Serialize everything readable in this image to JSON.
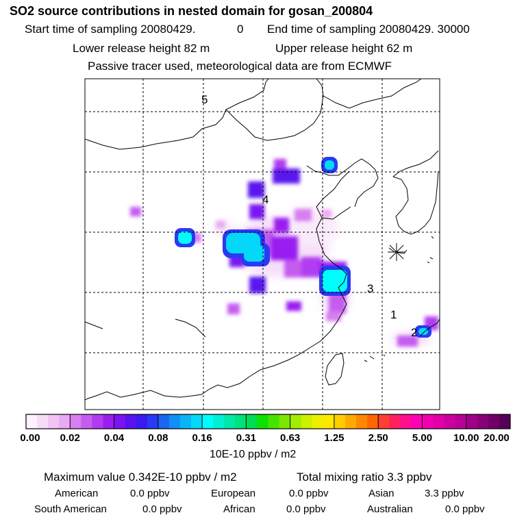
{
  "title": "SO2 source contributions in nested domain for gosan_200804",
  "header": {
    "start_label": "Start time of sampling 20080429.",
    "start_hour": "0",
    "end_label": "End time of sampling 20080429. 30000",
    "lower_release": "Lower release height   82 m",
    "upper_release": "Upper release height   62 m",
    "tracer_note": "Passive tracer used, meteorological data are from ECMWF"
  },
  "map": {
    "region_labels": [
      "5",
      "4",
      "3",
      "1",
      "2"
    ],
    "receptor_marker": "receptor-star"
  },
  "colorbar": {
    "tick_labels": [
      "0.00",
      "0.02",
      "0.04",
      "0.08",
      "0.16",
      "0.31",
      "0.63",
      "1.25",
      "2.50",
      "5.00",
      "10.00",
      "20.00"
    ],
    "colors": [
      "#fdf2fd",
      "#f7dcf8",
      "#f0c3f4",
      "#e9aaf1",
      "#d87ef0",
      "#c55cf0",
      "#b03cf0",
      "#9a1ef0",
      "#7a14f0",
      "#5a12ee",
      "#3a1aee",
      "#2a3af2",
      "#1a66f2",
      "#1090f4",
      "#08b4f6",
      "#04d8f8",
      "#00fcfc",
      "#00f0d4",
      "#00e8a8",
      "#00e07c",
      "#00dc52",
      "#10e000",
      "#44e400",
      "#7ae800",
      "#a4ec00",
      "#ccf000",
      "#ecf000",
      "#ffe800",
      "#ffcc00",
      "#ffaa00",
      "#ff8800",
      "#ff6600",
      "#ff4030",
      "#ff2060",
      "#ff1090",
      "#ff00b4",
      "#f000b0",
      "#e000a8",
      "#cc00a0",
      "#b80098",
      "#a00088",
      "#880078",
      "#700068",
      "#580058"
    ],
    "units": "10E-10 ppbv / m2"
  },
  "summary": {
    "max_value": "Maximum value  0.342E-10 ppbv / m2",
    "total_mixing": "Total mixing ratio        3.3 ppbv"
  },
  "regions": [
    {
      "name": "American",
      "value": "0.0 ppbv"
    },
    {
      "name": "European",
      "value": "0.0 ppbv"
    },
    {
      "name": "Asian",
      "value": "3.3 ppbv"
    },
    {
      "name": "South American",
      "value": "0.0 ppbv"
    },
    {
      "name": "African",
      "value": "0.0 ppbv"
    },
    {
      "name": "Australian",
      "value": "0.0 ppbv"
    }
  ]
}
